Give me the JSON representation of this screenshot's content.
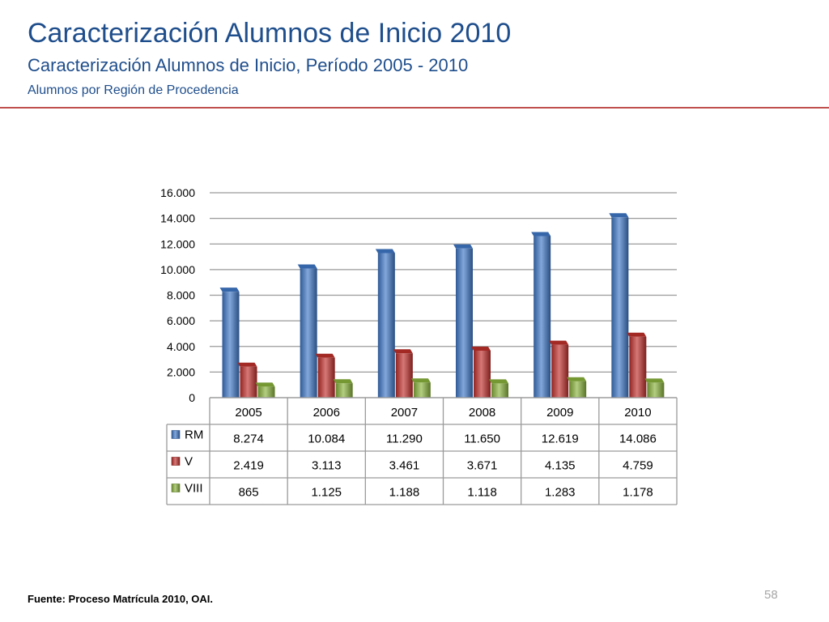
{
  "header": {
    "title": "Caracterización Alumnos de Inicio 2010",
    "subtitle": "Caracterización Alumnos de Inicio, Período 2005 - 2010",
    "subtitle2": "Alumnos por Región de Procedencia"
  },
  "footer": {
    "source": "Fuente: Proceso Matrícula 2010, OAI.",
    "page_number": "58"
  },
  "colors": {
    "accent": "#1f4e8c",
    "rule": "#c0504d",
    "RM": "#3f78c8",
    "V": "#c0302c",
    "VIII": "#8ab33c"
  },
  "chart_data": {
    "type": "bar",
    "categories": [
      "2005",
      "2006",
      "2007",
      "2008",
      "2009",
      "2010"
    ],
    "series": [
      {
        "name": "RM",
        "values": [
          8274,
          10084,
          11290,
          11650,
          12619,
          14086
        ],
        "labels": [
          "8.274",
          "10.084",
          "11.290",
          "11.650",
          "12.619",
          "14.086"
        ]
      },
      {
        "name": "V",
        "values": [
          2419,
          3113,
          3461,
          3671,
          4135,
          4759
        ],
        "labels": [
          "2.419",
          "3.113",
          "3.461",
          "3.671",
          "4.135",
          "4.759"
        ]
      },
      {
        "name": "VIII",
        "values": [
          865,
          1125,
          1188,
          1118,
          1283,
          1178
        ],
        "labels": [
          "865",
          "1.125",
          "1.188",
          "1.118",
          "1.283",
          "1.178"
        ]
      }
    ],
    "ylim": [
      0,
      16000
    ],
    "yticks": [
      0,
      2000,
      4000,
      6000,
      8000,
      10000,
      12000,
      14000,
      16000
    ],
    "ytick_labels": [
      "0",
      "2.000",
      "4.000",
      "6.000",
      "8.000",
      "10.000",
      "12.000",
      "14.000",
      "16.000"
    ],
    "grid": true,
    "data_table": true
  }
}
